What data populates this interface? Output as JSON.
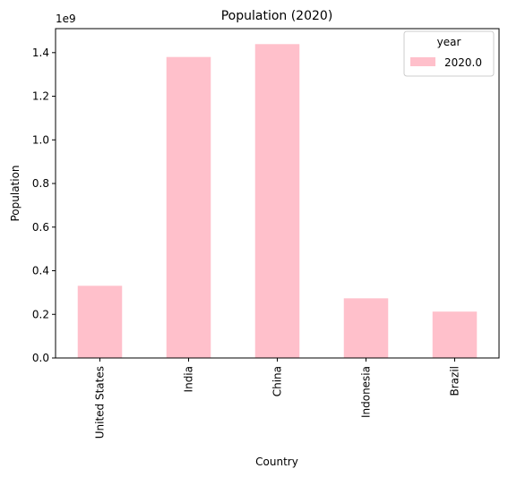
{
  "chart_data": {
    "type": "bar",
    "title": "Population (2020)",
    "xlabel": "Country",
    "ylabel": "Population",
    "y_offset_label": "1e9",
    "y_scale": 1000000000,
    "categories": [
      "United States",
      "India",
      "China",
      "Indonesia",
      "Brazil"
    ],
    "series": [
      {
        "name": "2020.0",
        "values": [
          331000000,
          1380000000,
          1439000000,
          273500000,
          212600000
        ]
      }
    ],
    "ylim": [
      0,
      1510000000
    ],
    "yticks": [
      0.0,
      0.2,
      0.4,
      0.6,
      0.8,
      1.0,
      1.2,
      1.4
    ],
    "ytick_labels": [
      "0.0",
      "0.2",
      "0.4",
      "0.6",
      "0.8",
      "1.0",
      "1.2",
      "1.4"
    ],
    "legend": {
      "title": "year",
      "placement": "top-right"
    },
    "bar_color": "#ffc0cb",
    "grid": false
  }
}
